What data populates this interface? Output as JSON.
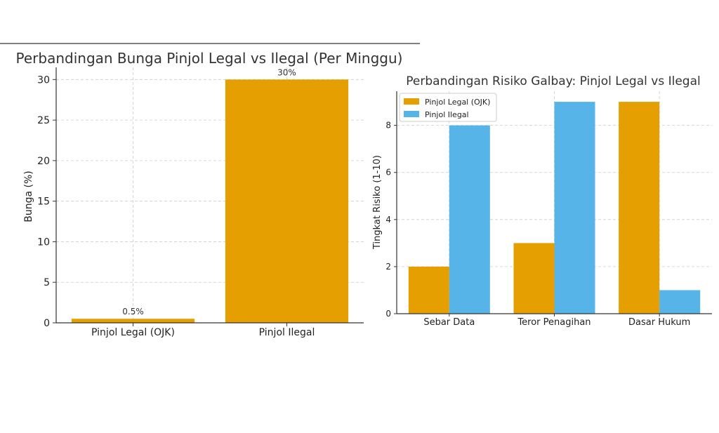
{
  "colors": {
    "legal": "#E69F00",
    "ilegal": "#56B4E9",
    "grid": "#cccccc",
    "axis": "#333333",
    "text": "#333333"
  },
  "chart_data": [
    {
      "type": "bar",
      "title": "Perbandingan Bunga Pinjol Legal vs Ilegal (Per Minggu)",
      "xlabel": "",
      "ylabel": "Bunga (%)",
      "categories": [
        "Pinjol Legal (OJK)",
        "Pinjol Ilegal"
      ],
      "values": [
        0.5,
        30
      ],
      "data_labels": [
        "0.5%",
        "30%"
      ],
      "ylim": [
        0,
        31.5
      ],
      "yticks": [
        0,
        5,
        10,
        15,
        20,
        25,
        30
      ],
      "grid": true
    },
    {
      "type": "bar",
      "title": "Perbandingan Risiko Galbay: Pinjol Legal vs Ilegal",
      "xlabel": "",
      "ylabel": "Tingkat Risiko (1-10)",
      "categories": [
        "Sebar Data",
        "Teror Penagihan",
        "Dasar Hukum"
      ],
      "series": [
        {
          "name": "Pinjol Legal (OJK)",
          "values": [
            2,
            3,
            9
          ]
        },
        {
          "name": "Pinjol Ilegal",
          "values": [
            8,
            9,
            1
          ]
        }
      ],
      "ylim": [
        0,
        9.45
      ],
      "yticks": [
        0,
        2,
        4,
        6,
        8
      ],
      "legend": "top-left",
      "grid": true
    }
  ]
}
